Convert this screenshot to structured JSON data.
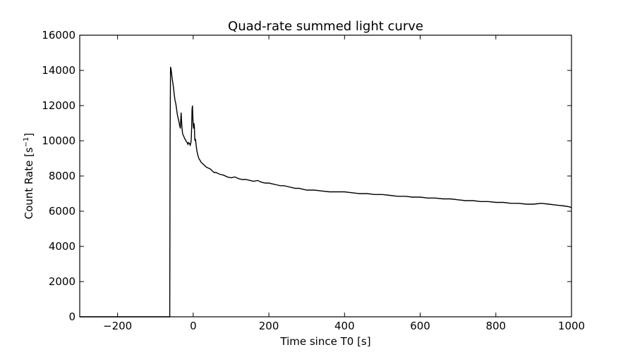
{
  "chart_data": {
    "type": "line",
    "title": "Quad-rate summed light curve",
    "xlabel": "Time since T0 [s]",
    "ylabel_main": "Count Rate [s",
    "ylabel_sup": "−1",
    "ylabel_end": "]",
    "xlim": [
      -300,
      1000
    ],
    "ylim": [
      0,
      16000
    ],
    "xticks": [
      -200,
      0,
      200,
      400,
      600,
      800,
      1000
    ],
    "xtick_labels": [
      "−200",
      "0",
      "200",
      "400",
      "600",
      "800",
      "1000"
    ],
    "yticks": [
      0,
      2000,
      4000,
      6000,
      8000,
      10000,
      12000,
      14000,
      16000
    ],
    "ytick_labels": [
      "0",
      "2000",
      "4000",
      "6000",
      "8000",
      "10000",
      "12000",
      "14000",
      "16000"
    ],
    "grid": false,
    "line_color": "#000000",
    "series": [
      {
        "x": [
          -300,
          -62,
          -61,
          -60,
          -58,
          -56,
          -54,
          -52,
          -50,
          -48,
          -46,
          -44,
          -42,
          -40,
          -38,
          -36,
          -34,
          -32,
          -30,
          -28,
          -26,
          -24,
          -22,
          -20,
          -18,
          -16,
          -14,
          -12,
          -10,
          -8,
          -6,
          -5,
          -4,
          -3,
          -2,
          -1,
          0,
          1,
          2,
          3,
          4,
          5,
          6,
          8,
          10,
          12,
          14,
          16,
          18,
          20,
          25,
          30,
          35,
          40,
          45,
          50,
          55,
          60,
          70,
          80,
          90,
          100,
          110,
          120,
          130,
          140,
          150,
          160,
          170,
          180,
          190,
          200,
          210,
          220,
          230,
          240,
          250,
          260,
          270,
          280,
          290,
          300,
          320,
          340,
          360,
          380,
          400,
          420,
          440,
          460,
          480,
          500,
          520,
          540,
          560,
          580,
          600,
          620,
          640,
          660,
          680,
          700,
          720,
          740,
          760,
          780,
          800,
          820,
          840,
          860,
          880,
          900,
          920,
          940,
          960,
          980,
          995,
          1000
        ],
        "y": [
          0,
          0,
          10400,
          14200,
          14000,
          13600,
          13300,
          13000,
          12600,
          12300,
          12100,
          11800,
          11500,
          11300,
          11100,
          10900,
          10700,
          11600,
          10800,
          10400,
          10300,
          10200,
          10100,
          10050,
          9950,
          9900,
          9800,
          9900,
          9850,
          9750,
          9900,
          10200,
          10900,
          11800,
          12000,
          11400,
          10900,
          10700,
          11000,
          10800,
          10100,
          10000,
          10100,
          9700,
          9400,
          9200,
          9050,
          8950,
          8900,
          8800,
          8700,
          8600,
          8500,
          8450,
          8400,
          8300,
          8200,
          8200,
          8100,
          8050,
          7950,
          7900,
          7950,
          7850,
          7800,
          7800,
          7750,
          7700,
          7750,
          7650,
          7600,
          7600,
          7550,
          7500,
          7450,
          7450,
          7400,
          7350,
          7300,
          7300,
          7250,
          7200,
          7200,
          7150,
          7100,
          7100,
          7100,
          7050,
          7000,
          7000,
          6950,
          6950,
          6900,
          6850,
          6850,
          6800,
          6800,
          6750,
          6750,
          6700,
          6700,
          6650,
          6600,
          6600,
          6550,
          6550,
          6500,
          6500,
          6450,
          6450,
          6400,
          6400,
          6450,
          6400,
          6350,
          6300,
          6250,
          6200
        ]
      }
    ]
  }
}
